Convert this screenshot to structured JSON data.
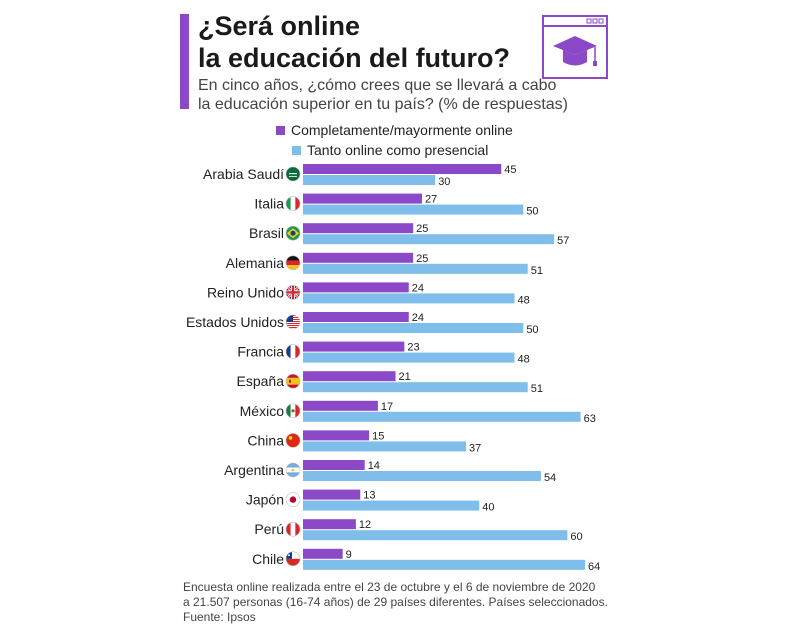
{
  "header": {
    "title_line1": "¿Será online",
    "title_line2": "la educación del futuro?",
    "subtitle_line1": "En cinco años, ¿cómo crees que se llevará a cabo",
    "subtitle_line2": "la educación superior en tu país? (% de respuestas)"
  },
  "colors": {
    "accent": "#8B48C7",
    "online": "#8B48C7",
    "presencial": "#7FBDEA"
  },
  "chart_data": {
    "type": "bar",
    "orientation": "horizontal",
    "categories": [
      "Arabia Saudí",
      "Italia",
      "Brasil",
      "Alemania",
      "Reino Unido",
      "Estados Unidos",
      "Francia",
      "España",
      "México",
      "China",
      "Argentina",
      "Japón",
      "Perú",
      "Chile"
    ],
    "series": [
      {
        "name": "Completamente/mayormente online",
        "values": [
          45,
          27,
          25,
          25,
          24,
          24,
          23,
          21,
          17,
          15,
          14,
          13,
          12,
          9
        ]
      },
      {
        "name": "Tanto online como presencial",
        "values": [
          30,
          50,
          57,
          51,
          48,
          50,
          48,
          51,
          63,
          37,
          54,
          40,
          60,
          64
        ]
      }
    ],
    "xlim": [
      0,
      64
    ],
    "legend_position": "top",
    "grid": false
  },
  "flags": [
    "saudi-flag-icon",
    "italy-flag-icon",
    "brazil-flag-icon",
    "germany-flag-icon",
    "uk-flag-icon",
    "usa-flag-icon",
    "france-flag-icon",
    "spain-flag-icon",
    "mexico-flag-icon",
    "china-flag-icon",
    "argentina-flag-icon",
    "japan-flag-icon",
    "peru-flag-icon",
    "chile-flag-icon"
  ],
  "footer": {
    "note_line1": "Encuesta online realizada entre el 23 de octubre y el 6 de noviembre de 2020",
    "note_line2": "a 21.507 personas (16-74 años) de 29 países diferentes. Países seleccionados.",
    "source": "Fuente: Ipsos"
  }
}
